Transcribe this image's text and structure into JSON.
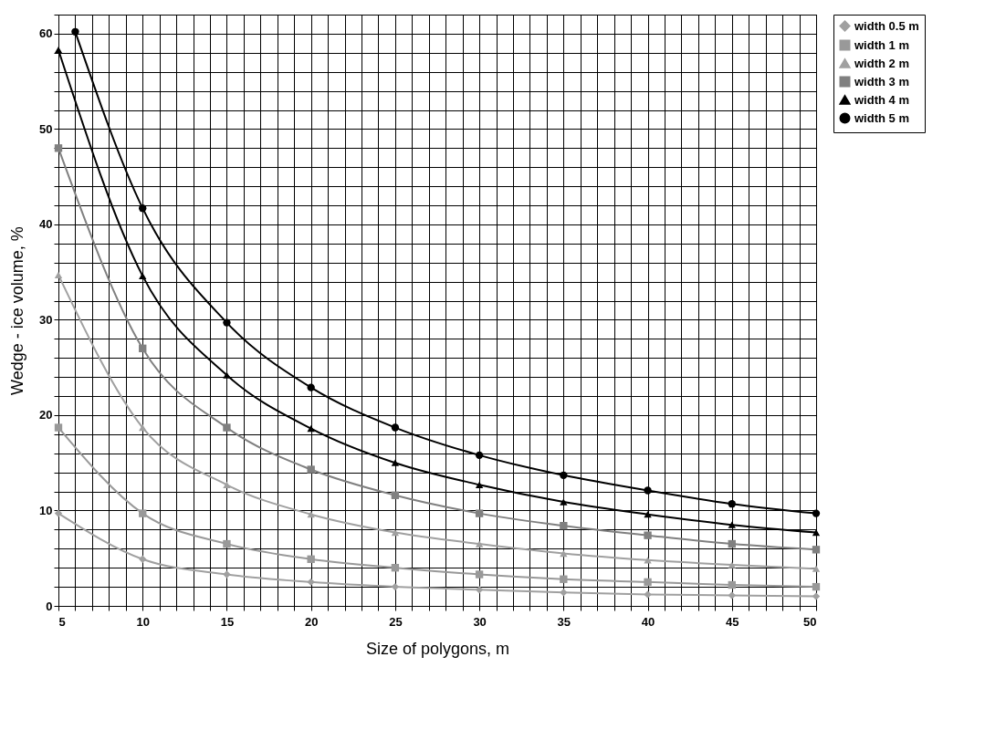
{
  "chart_data": {
    "type": "line",
    "xlabel": "Size of polygons, m",
    "ylabel": "Wedge - ice volume, %",
    "legend": "right",
    "grid": true,
    "line_style": "solid",
    "xlim": [
      5,
      50
    ],
    "ylim": [
      0,
      62
    ],
    "xticks": [
      5,
      {
        "value": 6,
        "label": null
      },
      {
        "value": 7,
        "label": null
      },
      {
        "value": 8,
        "label": null
      },
      {
        "value": 9,
        "label": null
      },
      10,
      {
        "value": 11,
        "label": null
      },
      {
        "value": 12,
        "label": null
      },
      {
        "value": 13,
        "label": null
      },
      {
        "value": 14,
        "label": null
      },
      15,
      {
        "value": 16,
        "label": null
      },
      {
        "value": 17,
        "label": null
      },
      {
        "value": 18,
        "label": null
      },
      {
        "value": 19,
        "label": null
      },
      20,
      {
        "value": 21,
        "label": null
      },
      {
        "value": 22,
        "label": null
      },
      {
        "value": 23,
        "label": null
      },
      {
        "value": 24,
        "label": null
      },
      25,
      {
        "value": 26,
        "label": null
      },
      {
        "value": 27,
        "label": null
      },
      {
        "value": 28,
        "label": null
      },
      {
        "value": 29,
        "label": null
      },
      30,
      {
        "value": 31,
        "label": null
      },
      {
        "value": 32,
        "label": null
      },
      {
        "value": 33,
        "label": null
      },
      {
        "value": 34,
        "label": null
      },
      35,
      {
        "value": 36,
        "label": null
      },
      {
        "value": 37,
        "label": null
      },
      {
        "value": 38,
        "label": null
      },
      {
        "value": 39,
        "label": null
      },
      40,
      {
        "value": 41,
        "label": null
      },
      {
        "value": 42,
        "label": null
      },
      {
        "value": 43,
        "label": null
      },
      {
        "value": 44,
        "label": null
      },
      45,
      {
        "value": 46,
        "label": null
      },
      {
        "value": 47,
        "label": null
      },
      {
        "value": 48,
        "label": null
      },
      {
        "value": 49,
        "label": null
      },
      50
    ],
    "yticks": [
      0,
      {
        "value": 2,
        "label": null
      },
      {
        "value": 4,
        "label": null
      },
      {
        "value": 6,
        "label": null
      },
      {
        "value": 8,
        "label": null
      },
      10,
      {
        "value": 12,
        "label": null
      },
      {
        "value": 14,
        "label": null
      },
      {
        "value": 16,
        "label": null
      },
      {
        "value": 18,
        "label": null
      },
      20,
      {
        "value": 22,
        "label": null
      },
      {
        "value": 24,
        "label": null
      },
      {
        "value": 26,
        "label": null
      },
      {
        "value": 28,
        "label": null
      },
      30,
      {
        "value": 32,
        "label": null
      },
      {
        "value": 34,
        "label": null
      },
      {
        "value": 36,
        "label": null
      },
      {
        "value": 38,
        "label": null
      },
      40,
      {
        "value": 42,
        "label": null
      },
      {
        "value": 44,
        "label": null
      },
      {
        "value": 46,
        "label": null
      },
      {
        "value": 48,
        "label": null
      },
      50,
      {
        "value": 52,
        "label": null
      },
      {
        "value": 54,
        "label": null
      },
      {
        "value": 56,
        "label": null
      },
      {
        "value": 58,
        "label": null
      },
      60,
      {
        "value": 62,
        "label": null
      }
    ],
    "series": [
      {
        "name": "width 0.5 m",
        "color": "#a0a0a0",
        "marker": "diamond",
        "x": [
          5,
          10,
          15,
          20,
          25,
          30,
          35,
          40,
          45,
          50
        ],
        "values": [
          9.7,
          4.9,
          3.3,
          2.5,
          2.0,
          1.7,
          1.4,
          1.2,
          1.1,
          1.0
        ]
      },
      {
        "name": "width 1 m",
        "color": "#999999",
        "marker": "square",
        "x": [
          5,
          10,
          15,
          20,
          25,
          30,
          35,
          40,
          45,
          50
        ],
        "values": [
          18.7,
          9.7,
          6.5,
          4.9,
          4.0,
          3.3,
          2.8,
          2.5,
          2.2,
          2.0
        ]
      },
      {
        "name": "width 2 m",
        "color": "#a0a0a0",
        "marker": "triangle",
        "x": [
          5,
          10,
          15,
          20,
          25,
          30,
          35,
          40,
          45,
          50
        ],
        "values": [
          34.7,
          18.7,
          12.7,
          9.6,
          7.7,
          6.5,
          5.5,
          4.8,
          4.3,
          3.9
        ]
      },
      {
        "name": "width 3 m",
        "color": "#808080",
        "marker": "square",
        "x": [
          5,
          10,
          15,
          20,
          25,
          30,
          35,
          40,
          45,
          50
        ],
        "values": [
          48,
          27,
          18.7,
          14.3,
          11.6,
          9.7,
          8.4,
          7.4,
          6.5,
          5.9
        ]
      },
      {
        "name": "width 4 m",
        "color": "#000000",
        "marker": "triangle",
        "x": [
          5,
          10,
          15,
          20,
          25,
          30,
          35,
          40,
          45,
          50
        ],
        "values": [
          58.3,
          34.6,
          24.2,
          18.6,
          15.0,
          12.7,
          10.9,
          9.6,
          8.5,
          7.7
        ]
      },
      {
        "name": "width 5 m",
        "color": "#000000",
        "marker": "circle",
        "x": [
          6,
          10,
          15,
          20,
          25,
          30,
          35,
          40,
          45,
          50
        ],
        "values": [
          60.2,
          41.7,
          29.7,
          22.9,
          18.7,
          15.8,
          13.7,
          12.1,
          10.7,
          9.7
        ]
      }
    ]
  }
}
